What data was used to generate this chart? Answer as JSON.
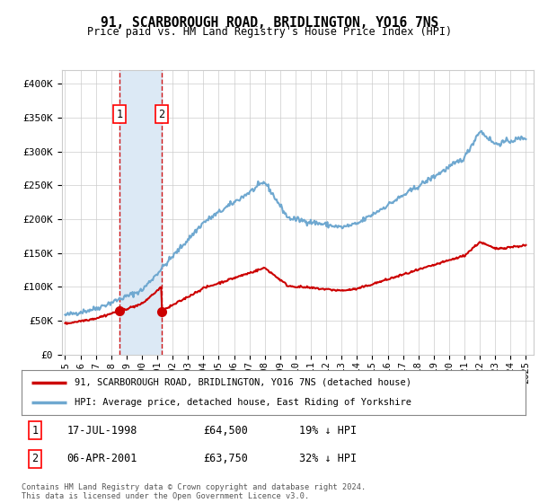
{
  "title": "91, SCARBOROUGH ROAD, BRIDLINGTON, YO16 7NS",
  "subtitle": "Price paid vs. HM Land Registry's House Price Index (HPI)",
  "ylabel_ticks": [
    "£0",
    "£50K",
    "£100K",
    "£150K",
    "£200K",
    "£250K",
    "£300K",
    "£350K",
    "£400K"
  ],
  "ytick_values": [
    0,
    50000,
    100000,
    150000,
    200000,
    250000,
    300000,
    350000,
    400000
  ],
  "ylim": [
    0,
    420000
  ],
  "xlim_start": 1994.8,
  "xlim_end": 2025.5,
  "sale1_date": 1998.54,
  "sale1_price": 64500,
  "sale1_label": "1",
  "sale2_date": 2001.27,
  "sale2_price": 63750,
  "sale2_label": "2",
  "hpi_color": "#6fa8d0",
  "price_color": "#cc0000",
  "sale_marker_color": "#cc0000",
  "highlight_color": "#dce9f5",
  "grid_color": "#cccccc",
  "background_color": "#ffffff",
  "legend_line1": "91, SCARBOROUGH ROAD, BRIDLINGTON, YO16 7NS (detached house)",
  "legend_line2": "HPI: Average price, detached house, East Riding of Yorkshire",
  "table_row1": [
    "1",
    "17-JUL-1998",
    "£64,500",
    "19% ↓ HPI"
  ],
  "table_row2": [
    "2",
    "06-APR-2001",
    "£63,750",
    "32% ↓ HPI"
  ],
  "footnote": "Contains HM Land Registry data © Crown copyright and database right 2024.\nThis data is licensed under the Open Government Licence v3.0.",
  "xtick_years": [
    1995,
    1996,
    1997,
    1998,
    1999,
    2000,
    2001,
    2002,
    2003,
    2004,
    2005,
    2006,
    2007,
    2008,
    2009,
    2010,
    2011,
    2012,
    2013,
    2014,
    2015,
    2016,
    2017,
    2018,
    2019,
    2020,
    2021,
    2022,
    2023,
    2024,
    2025
  ]
}
